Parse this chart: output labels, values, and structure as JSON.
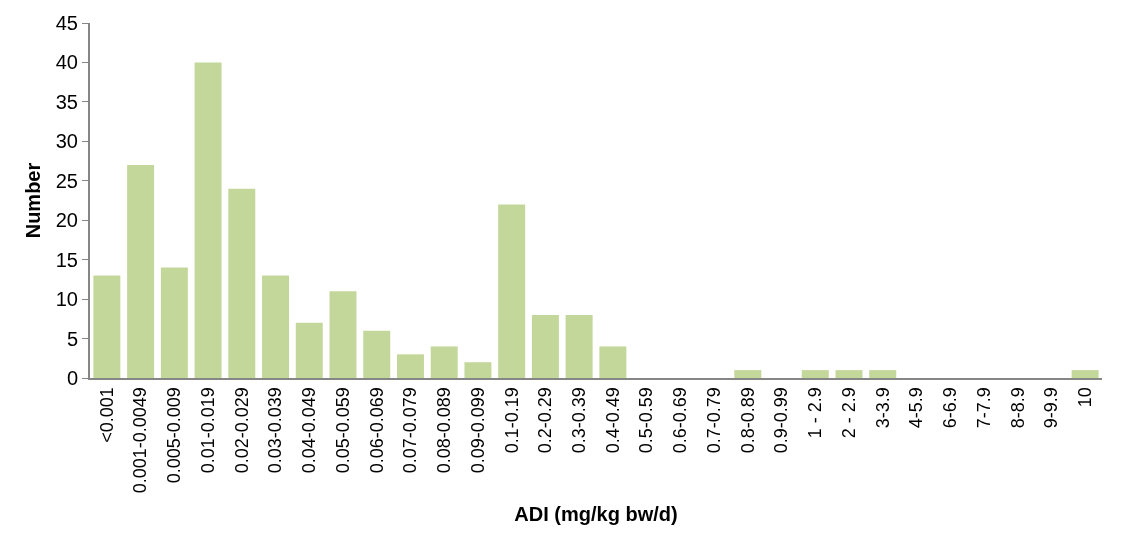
{
  "chart_data": {
    "type": "bar",
    "xlabel": "ADI (mg/kg bw/d)",
    "ylabel": "Number",
    "categories": [
      "<0.001",
      "0.001-0.0049",
      "0.005-0.009",
      "0.01-0.019",
      "0.02-0.029",
      "0.03-0.039",
      "0.04-0.049",
      "0.05-0.059",
      "0.06-0.069",
      "0.07-0.079",
      "0.08-0.089",
      "0.09-0.099",
      "0.1-0.19",
      "0.2-0.29",
      "0.3-0.39",
      "0.4-0.49",
      "0.5-0.59",
      "0.6-0.69",
      "0.7-0.79",
      "0.8-0.89",
      "0.9-0.99",
      "1 - 2.9",
      "2 - 2.9",
      "3-3.9",
      "4-5.9",
      "6-6.9",
      "7-7.9",
      "8-8.9",
      "9-9.9",
      "10"
    ],
    "values": [
      13,
      27,
      14,
      40,
      24,
      13,
      7,
      11,
      6,
      3,
      4,
      2,
      22,
      8,
      8,
      4,
      0,
      0,
      0,
      1,
      0,
      1,
      1,
      1,
      0,
      0,
      0,
      0,
      0,
      1
    ],
    "color": "#c4d79b",
    "ylim": [
      0,
      45
    ],
    "yticks": [
      0,
      5,
      10,
      15,
      20,
      25,
      30,
      35,
      40,
      45
    ]
  }
}
